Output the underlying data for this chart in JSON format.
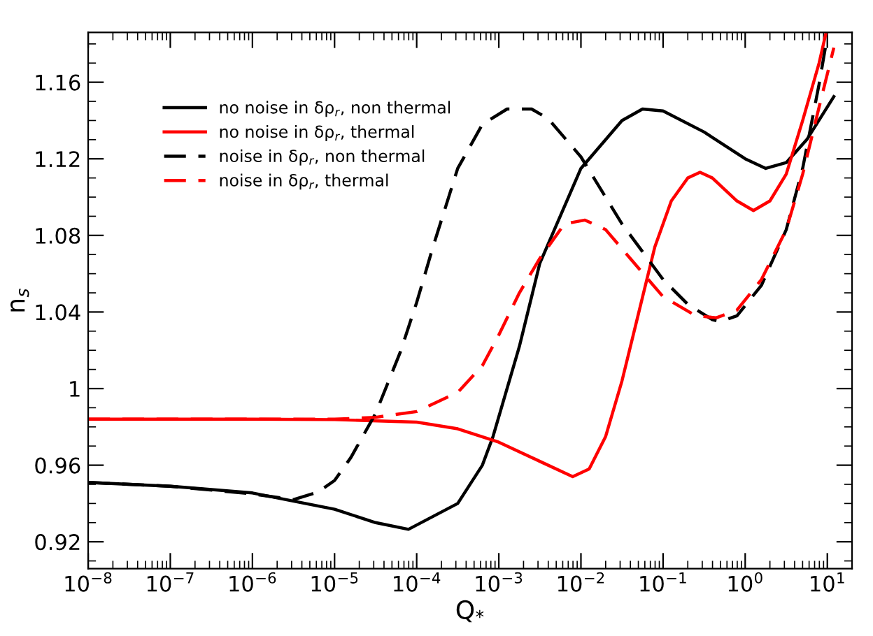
{
  "chart_data": {
    "type": "line",
    "xlabel": "Q$_{*}$",
    "ylabel": "n$_{s}$",
    "log": "x",
    "grid": false,
    "legend": "top left",
    "marker": "none",
    "xlim": [
      1e-08,
      20
    ],
    "ylim": [
      0.906,
      1.186
    ],
    "xticks": [
      {
        "value": 1e-08,
        "label": "10$^{−8}$"
      },
      {
        "value": 1e-07,
        "label": "10$^{−7}$"
      },
      {
        "value": 1e-06,
        "label": "10$^{−6}$"
      },
      {
        "value": 1e-05,
        "label": "10$^{−5}$"
      },
      {
        "value": 0.0001,
        "label": "10$^{−4}$"
      },
      {
        "value": 0.001,
        "label": "10$^{−3}$"
      },
      {
        "value": 0.01,
        "label": "10$^{−2}$"
      },
      {
        "value": 0.1,
        "label": "10$^{−1}$"
      },
      {
        "value": 1,
        "label": "10$^{0}$"
      },
      {
        "value": 10,
        "label": "10$^{1}$"
      }
    ],
    "yticks": [
      0.92,
      0.96,
      1,
      1.04,
      1.08,
      1.12,
      1.16
    ],
    "series": [
      {
        "name": "no noise in δρ$_{r}$, non thermal",
        "color": "#000000",
        "line_style": "solid",
        "x": [
          1e-08,
          1e-07,
          1e-06,
          1e-05,
          3.16e-05,
          7.94e-05,
          0.000316,
          0.000631,
          0.000851,
          0.00178,
          0.00316,
          0.01,
          0.0316,
          0.0562,
          0.1,
          0.316,
          1,
          1.78,
          3.16,
          5.62,
          12.0
        ],
        "values": [
          0.951,
          0.949,
          0.9455,
          0.937,
          0.93,
          0.9265,
          0.94,
          0.96,
          0.975,
          1.022,
          1.0655,
          1.115,
          1.14,
          1.146,
          1.145,
          1.134,
          1.12,
          1.115,
          1.118,
          1.13,
          1.1525
        ]
      },
      {
        "name": "no noise in δρ$_{r}$, thermal",
        "color": "#ff0000",
        "line_style": "solid",
        "x": [
          1e-08,
          1e-06,
          1e-05,
          0.0001,
          0.000316,
          0.001,
          0.00316,
          0.00794,
          0.0126,
          0.02,
          0.0316,
          0.0501,
          0.0794,
          0.126,
          0.2,
          0.282,
          0.398,
          0.794,
          1.26,
          2,
          3.16,
          5.01,
          7.94,
          9.55
        ],
        "values": [
          0.984,
          0.984,
          0.9838,
          0.9825,
          0.979,
          0.972,
          0.962,
          0.954,
          0.958,
          0.975,
          1.004,
          1.039,
          1.074,
          1.098,
          1.11,
          1.113,
          1.11,
          1.098,
          1.093,
          1.098,
          1.112,
          1.14,
          1.17,
          1.185
        ]
      },
      {
        "name": "noise in δρ$_{r}$, non thermal",
        "color": "#000000",
        "line_style": "dashed",
        "x": [
          1e-08,
          1e-07,
          1e-06,
          3.16e-06,
          6.31e-06,
          1e-05,
          1.58e-05,
          3.16e-05,
          6.31e-05,
          0.0001,
          0.000158,
          0.000316,
          0.000631,
          0.00126,
          0.00251,
          0.00398,
          0.01,
          0.0316,
          0.1,
          0.2,
          0.398,
          0.501,
          0.794,
          1.58,
          3.16,
          5.01,
          7.94,
          10
        ],
        "values": [
          0.951,
          0.949,
          0.945,
          0.942,
          0.946,
          0.952,
          0.964,
          0.987,
          1.019,
          1.045,
          1.074,
          1.115,
          1.138,
          1.146,
          1.146,
          1.141,
          1.121,
          1.086,
          1.057,
          1.044,
          1.036,
          1.035,
          1.038,
          1.054,
          1.083,
          1.115,
          1.159,
          1.184
        ]
      },
      {
        "name": "noise in δρ$_{r}$, thermal",
        "color": "#ff0000",
        "line_style": "dashed",
        "x": [
          1e-08,
          1e-05,
          3.16e-05,
          0.0001,
          0.000316,
          0.000631,
          0.001,
          0.00178,
          0.00316,
          0.00631,
          0.0112,
          0.02,
          0.0398,
          0.1,
          0.251,
          0.447,
          0.794,
          1.58,
          3.16,
          5.01,
          7.94,
          12.0
        ],
        "values": [
          0.984,
          0.984,
          0.985,
          0.988,
          0.998,
          1.012,
          1.028,
          1.05,
          1.068,
          1.086,
          1.088,
          1.083,
          1.068,
          1.048,
          1.038,
          1.037,
          1.041,
          1.057,
          1.083,
          1.112,
          1.147,
          1.178
        ]
      }
    ]
  }
}
